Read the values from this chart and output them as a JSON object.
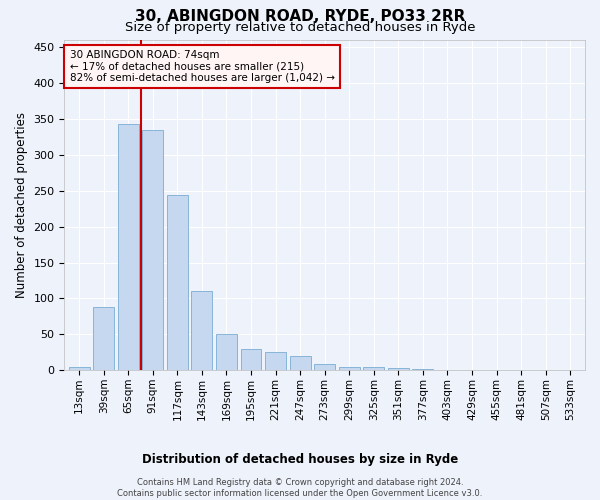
{
  "title": "30, ABINGDON ROAD, RYDE, PO33 2RR",
  "subtitle": "Size of property relative to detached houses in Ryde",
  "xlabel": "Distribution of detached houses by size in Ryde",
  "ylabel": "Number of detached properties",
  "bar_color": "#c5d8ef",
  "bar_edgecolor": "#7aadd4",
  "categories": [
    "13sqm",
    "39sqm",
    "65sqm",
    "91sqm",
    "117sqm",
    "143sqm",
    "169sqm",
    "195sqm",
    "221sqm",
    "247sqm",
    "273sqm",
    "299sqm",
    "325sqm",
    "351sqm",
    "377sqm",
    "403sqm",
    "429sqm",
    "455sqm",
    "481sqm",
    "507sqm",
    "533sqm"
  ],
  "values": [
    5,
    88,
    343,
    335,
    244,
    110,
    50,
    30,
    25,
    20,
    9,
    5,
    4,
    3,
    2,
    1,
    1,
    0.5,
    0.5,
    0.3,
    0.2
  ],
  "ylim": [
    0,
    460
  ],
  "yticks": [
    0,
    50,
    100,
    150,
    200,
    250,
    300,
    350,
    400,
    450
  ],
  "vline_x_index": 2,
  "vline_color": "#cc0000",
  "annotation_line1": "30 ABINGDON ROAD: 74sqm",
  "annotation_line2": "← 17% of detached houses are smaller (215)",
  "annotation_line3": "82% of semi-detached houses are larger (1,042) →",
  "annotation_box_facecolor": "#fff5f5",
  "annotation_box_edgecolor": "#cc0000",
  "footer_line1": "Contains HM Land Registry data © Crown copyright and database right 2024.",
  "footer_line2": "Contains public sector information licensed under the Open Government Licence v3.0.",
  "background_color": "#eef2fb",
  "grid_color": "#ffffff",
  "title_fontsize": 11,
  "subtitle_fontsize": 9.5,
  "axis_label_fontsize": 8.5,
  "tick_fontsize": 7.5,
  "footer_fontsize": 6,
  "annotation_fontsize": 7.5
}
